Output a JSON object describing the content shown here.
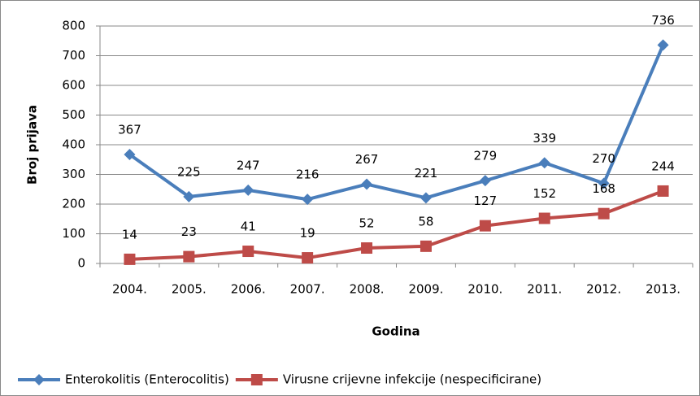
{
  "chart_data": {
    "type": "line",
    "xlabel": "Godina",
    "ylabel": "Broj prijava",
    "categories": [
      "2004.",
      "2005.",
      "2006.",
      "2007.",
      "2008.",
      "2009.",
      "2010.",
      "2011.",
      "2012.",
      "2013."
    ],
    "series": [
      {
        "name": "Enterokolitis (Enterocolitis)",
        "color": "#4a7ebb",
        "marker": "diamond",
        "values": [
          367,
          225,
          247,
          216,
          267,
          221,
          279,
          339,
          270,
          736
        ]
      },
      {
        "name": "Virusne crijevne infekcije (nespecificirane)",
        "color": "#be4b48",
        "marker": "square",
        "values": [
          14,
          23,
          41,
          19,
          52,
          58,
          127,
          152,
          168,
          244
        ]
      }
    ],
    "ylim": [
      0,
      800
    ],
    "yticks": [
      0,
      100,
      200,
      300,
      400,
      500,
      600,
      700,
      800
    ],
    "grid": true,
    "legend": "bottom"
  }
}
